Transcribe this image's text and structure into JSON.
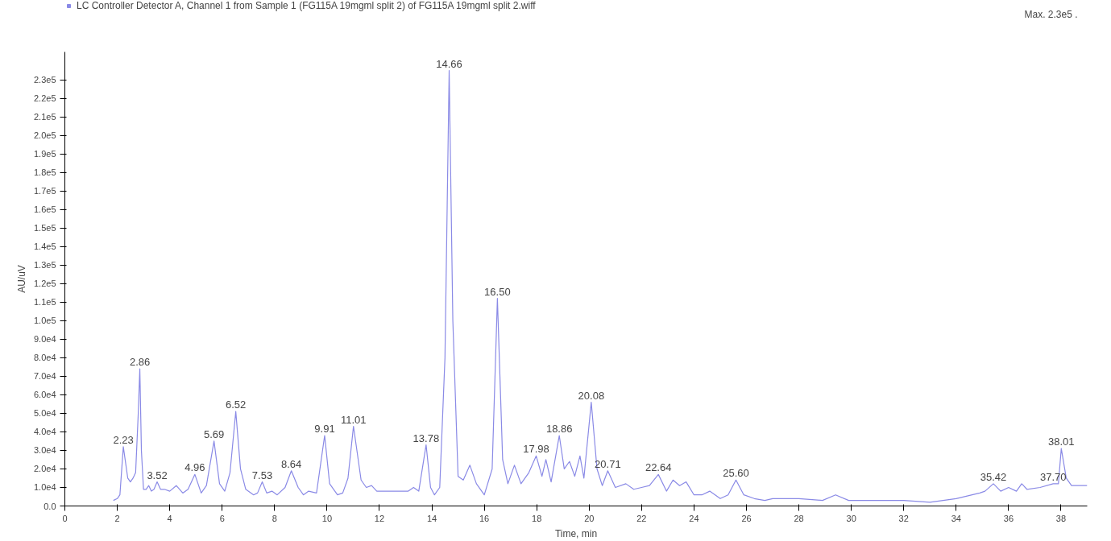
{
  "chart_data": {
    "type": "line",
    "xlabel": "Time, min",
    "ylabel": "AU/uV",
    "x": [
      1.85,
      2.0,
      2.1,
      2.23,
      2.4,
      2.5,
      2.6,
      2.7,
      2.8,
      2.86,
      2.92,
      3.0,
      3.1,
      3.2,
      3.3,
      3.4,
      3.52,
      3.65,
      3.8,
      4.0,
      4.25,
      4.5,
      4.7,
      4.96,
      5.2,
      5.4,
      5.69,
      5.9,
      6.1,
      6.3,
      6.52,
      6.7,
      6.9,
      7.2,
      7.35,
      7.53,
      7.7,
      7.9,
      8.1,
      8.4,
      8.64,
      8.9,
      9.1,
      9.3,
      9.6,
      9.91,
      10.1,
      10.4,
      10.6,
      10.8,
      11.01,
      11.3,
      11.5,
      11.7,
      11.9,
      12.4,
      12.7,
      13.1,
      13.3,
      13.5,
      13.78,
      13.95,
      14.1,
      14.3,
      14.5,
      14.66,
      14.8,
      15.0,
      15.2,
      15.45,
      15.7,
      16.0,
      16.3,
      16.5,
      16.7,
      16.9,
      17.15,
      17.4,
      17.7,
      17.98,
      18.2,
      18.35,
      18.55,
      18.86,
      19.05,
      19.25,
      19.45,
      19.65,
      19.8,
      20.08,
      20.3,
      20.5,
      20.71,
      21.0,
      21.4,
      21.7,
      22.0,
      22.3,
      22.64,
      22.95,
      23.2,
      23.45,
      23.7,
      24.0,
      24.3,
      24.6,
      25.0,
      25.3,
      25.6,
      25.9,
      26.3,
      26.7,
      27.0,
      28.0,
      28.9,
      29.4,
      29.9,
      31.0,
      32.0,
      33.0,
      34.0,
      34.9,
      35.1,
      35.42,
      35.7,
      36.0,
      36.3,
      36.5,
      36.7,
      37.2,
      37.7,
      37.9,
      38.01,
      38.2,
      38.4,
      38.8,
      39.0
    ],
    "series": [
      {
        "name": "LC Controller Detector A, Channel 1 from Sample 1 (FG115A 19mgml split 2) of FG115A 19mgml split 2.wiff",
        "color": "#8a8ae6",
        "values": [
          3000,
          4000,
          6000,
          32000,
          15000,
          13000,
          15000,
          18000,
          50000,
          74000,
          30000,
          9000,
          9000,
          11000,
          8000,
          9000,
          13000,
          9000,
          9000,
          8000,
          11000,
          7000,
          9000,
          17000,
          7000,
          11000,
          35000,
          12000,
          8000,
          18000,
          51000,
          20000,
          9000,
          6000,
          7000,
          13000,
          7000,
          8000,
          6000,
          10000,
          19000,
          10000,
          6000,
          8000,
          7000,
          38000,
          12000,
          6000,
          7000,
          15000,
          43000,
          14000,
          10000,
          11000,
          8000,
          8000,
          8000,
          8000,
          10000,
          8000,
          33000,
          10000,
          6000,
          10000,
          80000,
          235000,
          100000,
          16000,
          14000,
          22000,
          12000,
          6000,
          20000,
          112000,
          25000,
          12000,
          22000,
          12000,
          18000,
          27000,
          16000,
          25000,
          13000,
          38000,
          20000,
          24000,
          16000,
          27000,
          15000,
          56000,
          20000,
          11000,
          19000,
          10000,
          12000,
          9000,
          10000,
          11000,
          17000,
          8000,
          14000,
          11000,
          13000,
          6000,
          6000,
          8000,
          4000,
          6000,
          14000,
          6000,
          4000,
          3000,
          4000,
          4000,
          3000,
          6000,
          3000,
          3000,
          3000,
          2000,
          4000,
          7000,
          8000,
          12000,
          8000,
          10000,
          8000,
          12000,
          9000,
          10000,
          12000,
          12000,
          31000,
          15000,
          11000,
          11000,
          11000
        ]
      }
    ],
    "xlim": [
      0,
      39
    ],
    "ylim": [
      0,
      245000
    ],
    "xticks": [
      0,
      2,
      4,
      6,
      8,
      10,
      12,
      14,
      16,
      18,
      20,
      22,
      24,
      26,
      28,
      30,
      32,
      34,
      36,
      38
    ],
    "yticks": [
      {
        "value": 0,
        "label": "0.0"
      },
      {
        "value": 10000,
        "label": "1.0e4"
      },
      {
        "value": 20000,
        "label": "2.0e4"
      },
      {
        "value": 30000,
        "label": "3.0e4"
      },
      {
        "value": 40000,
        "label": "4.0e4"
      },
      {
        "value": 50000,
        "label": "5.0e4"
      },
      {
        "value": 60000,
        "label": "6.0e4"
      },
      {
        "value": 70000,
        "label": "7.0e4"
      },
      {
        "value": 80000,
        "label": "8.0e4"
      },
      {
        "value": 90000,
        "label": "9.0e4"
      },
      {
        "value": 100000,
        "label": "1.0e5"
      },
      {
        "value": 110000,
        "label": "1.1e5"
      },
      {
        "value": 120000,
        "label": "1.2e5"
      },
      {
        "value": 130000,
        "label": "1.3e5"
      },
      {
        "value": 140000,
        "label": "1.4e5"
      },
      {
        "value": 150000,
        "label": "1.5e5"
      },
      {
        "value": 160000,
        "label": "1.6e5"
      },
      {
        "value": 170000,
        "label": "1.7e5"
      },
      {
        "value": 180000,
        "label": "1.8e5"
      },
      {
        "value": 190000,
        "label": "1.9e5"
      },
      {
        "value": 200000,
        "label": "2.0e5"
      },
      {
        "value": 210000,
        "label": "2.1e5"
      },
      {
        "value": 220000,
        "label": "2.2e5"
      },
      {
        "value": 230000,
        "label": "2.3e5"
      }
    ],
    "grid": false,
    "legend": "top left",
    "marker": "none",
    "line_style": "solid",
    "annotations": [
      "Max. 2.3e5 .",
      {
        "text": "2.23",
        "x": 2.23,
        "y": 32000
      },
      {
        "text": "2.86",
        "x": 2.86,
        "y": 74000
      },
      {
        "text": "3.52",
        "x": 3.52,
        "y": 13000
      },
      {
        "text": "4.96",
        "x": 4.96,
        "y": 17000
      },
      {
        "text": "5.69",
        "x": 5.69,
        "y": 35000
      },
      {
        "text": "6.52",
        "x": 6.52,
        "y": 51000
      },
      {
        "text": "7.53",
        "x": 7.53,
        "y": 13000
      },
      {
        "text": "8.64",
        "x": 8.64,
        "y": 19000
      },
      {
        "text": "9.91",
        "x": 9.91,
        "y": 38000
      },
      {
        "text": "11.01",
        "x": 11.01,
        "y": 43000
      },
      {
        "text": "13.78",
        "x": 13.78,
        "y": 33000
      },
      {
        "text": "14.66",
        "x": 14.66,
        "y": 235000
      },
      {
        "text": "16.50",
        "x": 16.5,
        "y": 112000
      },
      {
        "text": "17.98",
        "x": 17.98,
        "y": 27000
      },
      {
        "text": "18.86",
        "x": 18.86,
        "y": 38000
      },
      {
        "text": "20.08",
        "x": 20.08,
        "y": 56000
      },
      {
        "text": "20.71",
        "x": 20.71,
        "y": 19000
      },
      {
        "text": "22.64",
        "x": 22.64,
        "y": 17000
      },
      {
        "text": "25.60",
        "x": 25.6,
        "y": 14000
      },
      {
        "text": "35.42",
        "x": 35.42,
        "y": 12000
      },
      {
        "text": "37.70",
        "x": 37.7,
        "y": 12000
      },
      {
        "text": "38.01",
        "x": 38.01,
        "y": 31000
      }
    ]
  }
}
